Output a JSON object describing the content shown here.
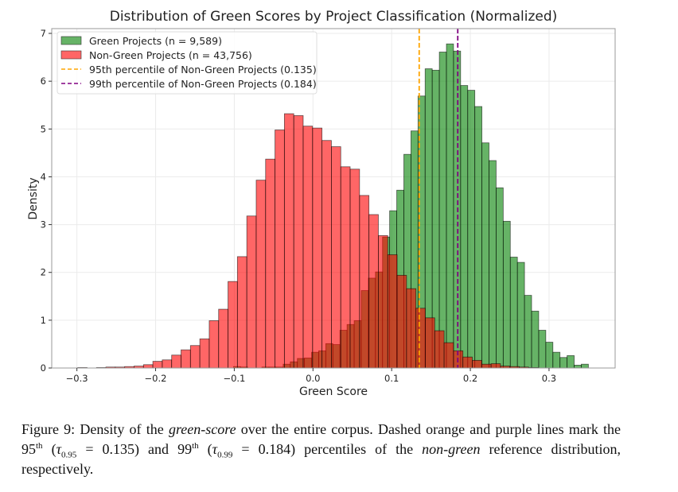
{
  "chart_data": {
    "type": "histogram",
    "title": "Distribution of Green Scores by Project Classification (Normalized)",
    "xlabel": "Green Score",
    "ylabel": "Density",
    "xlim": [
      -0.332,
      0.384
    ],
    "ylim": [
      0,
      7.1
    ],
    "xticks": [
      -0.3,
      -0.2,
      -0.1,
      0.0,
      0.1,
      0.2,
      0.3
    ],
    "xtick_labels": [
      "−0.3",
      "−0.2",
      "−0.1",
      "0.0",
      "0.1",
      "0.2",
      "0.3"
    ],
    "yticks": [
      0,
      1,
      2,
      3,
      4,
      5,
      6,
      7
    ],
    "ytick_labels": [
      "0",
      "1",
      "2",
      "3",
      "4",
      "5",
      "6",
      "7"
    ],
    "grid": true,
    "legend_position": "top-left",
    "series": [
      {
        "name": "Green Projects (n = 9,589)",
        "color": "#008000",
        "bin_start": -0.101,
        "bin_width": 0.00902,
        "values": [
          0.03,
          0.02,
          0,
          0,
          0.02,
          0.02,
          0.02,
          0.08,
          0.13,
          0.2,
          0.21,
          0.33,
          0.36,
          0.51,
          0.49,
          0.79,
          0.91,
          0.99,
          1.62,
          1.88,
          2.01,
          2.74,
          3.29,
          3.72,
          4.47,
          4.96,
          5.69,
          6.26,
          6.23,
          6.61,
          6.78,
          6.63,
          5.91,
          5.81,
          5.47,
          4.71,
          4.34,
          3.77,
          3.07,
          2.32,
          2.21,
          1.52,
          1.19,
          0.79,
          0.54,
          0.33,
          0.22,
          0.26,
          0.06,
          0.08
        ]
      },
      {
        "name": "Non-Green Projects (n = 43,756)",
        "color": "#ff0000",
        "bin_start": -0.299,
        "bin_width": 0.01194,
        "values": [
          0.01,
          0.0,
          0.01,
          0.02,
          0.02,
          0.03,
          0.04,
          0.07,
          0.14,
          0.17,
          0.27,
          0.38,
          0.47,
          0.61,
          0.99,
          1.23,
          1.81,
          2.33,
          3.18,
          3.93,
          4.37,
          4.98,
          5.32,
          5.28,
          5.06,
          5.02,
          4.76,
          4.63,
          4.21,
          4.16,
          3.61,
          3.21,
          2.77,
          2.37,
          1.94,
          1.66,
          1.25,
          1.05,
          0.78,
          0.53,
          0.36,
          0.23,
          0.16,
          0.08,
          0.09,
          0.04,
          0.03,
          0.02,
          0.01
        ]
      }
    ],
    "vlines": [
      {
        "name": "95th percentile of Non-Green Projects (0.135)",
        "x": 0.135,
        "color": "#ffa500"
      },
      {
        "name": "99th percentile of Non-Green Projects (0.184)",
        "x": 0.184,
        "color": "#800080"
      }
    ]
  },
  "caption": {
    "label": "Figure 9:",
    "t1": " Density of the ",
    "i1": "green-score",
    "t2": " over the entire corpus.  Dashed orange and purple lines mark the 95",
    "sup1": "th",
    "t3": " (",
    "tau1": "τ",
    "sub1": "0.95",
    "t4": " = 0.135) and 99",
    "sup2": "th",
    "t5": " (",
    "tau2": "τ",
    "sub2": "0.99",
    "t6": " = 0.184) percentiles of the ",
    "i2": "non-green",
    "t7": " reference distribution, respectively."
  }
}
